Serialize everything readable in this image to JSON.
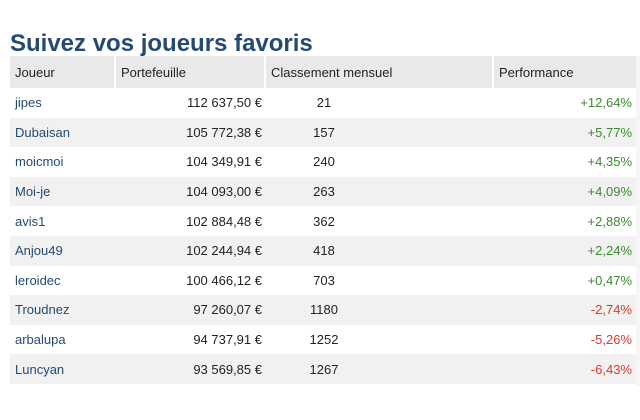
{
  "title": "Suivez vos joueurs favoris",
  "table": {
    "headers": {
      "player": "Joueur",
      "portfolio": "Portefeuille",
      "rank": "Classement mensuel",
      "performance": "Performance"
    },
    "rows": [
      {
        "player": "jipes",
        "portfolio": "112 637,50 €",
        "rank": "21",
        "performance": "+12,64%",
        "trend": "positive"
      },
      {
        "player": "Dubaisan",
        "portfolio": "105 772,38 €",
        "rank": "157",
        "performance": "+5,77%",
        "trend": "positive"
      },
      {
        "player": "moicmoi",
        "portfolio": "104 349,91 €",
        "rank": "240",
        "performance": "+4,35%",
        "trend": "positive"
      },
      {
        "player": "Moi-je",
        "portfolio": "104 093,00 €",
        "rank": "263",
        "performance": "+4,09%",
        "trend": "positive"
      },
      {
        "player": "avis1",
        "portfolio": "102 884,48 €",
        "rank": "362",
        "performance": "+2,88%",
        "trend": "positive"
      },
      {
        "player": "Anjou49",
        "portfolio": "102 244,94 €",
        "rank": "418",
        "performance": "+2,24%",
        "trend": "positive"
      },
      {
        "player": "leroidec",
        "portfolio": "100 466,12 €",
        "rank": "703",
        "performance": "+0,47%",
        "trend": "positive"
      },
      {
        "player": "Troudnez",
        "portfolio": "97 260,07 €",
        "rank": "1180",
        "performance": "-2,74%",
        "trend": "negative"
      },
      {
        "player": "arbalupa",
        "portfolio": "94 737,91 €",
        "rank": "1252",
        "performance": "-5,26%",
        "trend": "negative"
      },
      {
        "player": "Luncyan",
        "portfolio": "93 569,85 €",
        "rank": "1267",
        "performance": "-6,43%",
        "trend": "negative"
      }
    ]
  },
  "colors": {
    "title": "#244a73",
    "player_link": "#244a73",
    "positive": "#3a8a2e",
    "negative": "#d63b2f",
    "header_bg": "#e9e9e9",
    "row_alt_bg": "#f1f1f1"
  }
}
